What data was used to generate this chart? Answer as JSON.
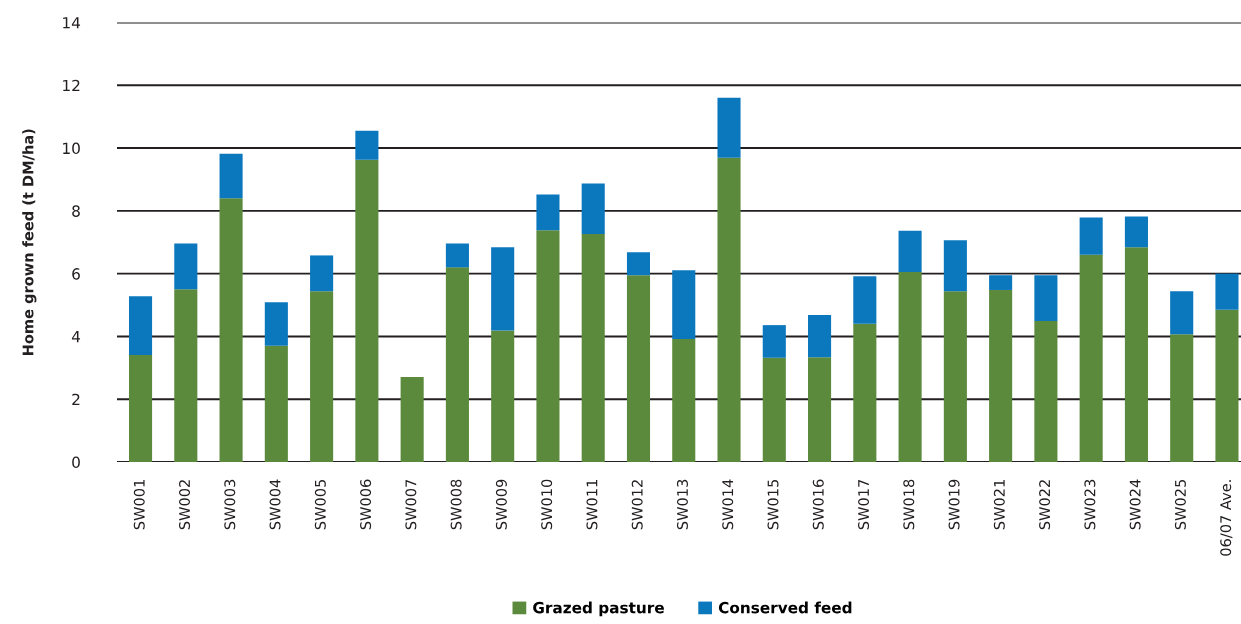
{
  "chart_data": {
    "type": "bar",
    "ylabel": "Home grown feed (t DM/ha)",
    "categories": [
      "SW001",
      "SW002",
      "SW003",
      "SW004",
      "SW005",
      "SW006",
      "SW007",
      "SW008",
      "SW009",
      "SW010",
      "SW011",
      "SW012",
      "SW013",
      "SW014",
      "SW015",
      "SW016",
      "SW017",
      "SW018",
      "SW019",
      "SW021",
      "SW022",
      "SW023",
      "SW024",
      "SW025",
      "06/07 Ave."
    ],
    "series": [
      {
        "name": "Grazed pasture",
        "color": "#5b8a3c",
        "values": [
          3.41,
          5.5,
          8.4,
          3.7,
          5.44,
          9.63,
          2.71,
          6.2,
          4.19,
          7.38,
          7.26,
          5.95,
          3.92,
          9.69,
          3.32,
          3.34,
          4.4,
          6.05,
          5.44,
          5.48,
          4.49,
          6.6,
          6.84,
          4.07,
          4.85
        ]
      },
      {
        "name": "Conserved feed",
        "color": "#0b77bd",
        "values": [
          1.87,
          1.46,
          1.42,
          1.39,
          1.14,
          0.92,
          null,
          0.76,
          2.65,
          1.14,
          1.61,
          0.73,
          2.19,
          1.91,
          1.04,
          1.34,
          1.52,
          1.32,
          1.62,
          0.47,
          1.46,
          1.19,
          0.98,
          1.37,
          1.15
        ]
      }
    ],
    "stacked": true,
    "ylim": [
      0,
      14
    ],
    "yticks": [
      0,
      2,
      4,
      6,
      8,
      10,
      12,
      14
    ],
    "grid": "y",
    "legend": "bottom"
  }
}
